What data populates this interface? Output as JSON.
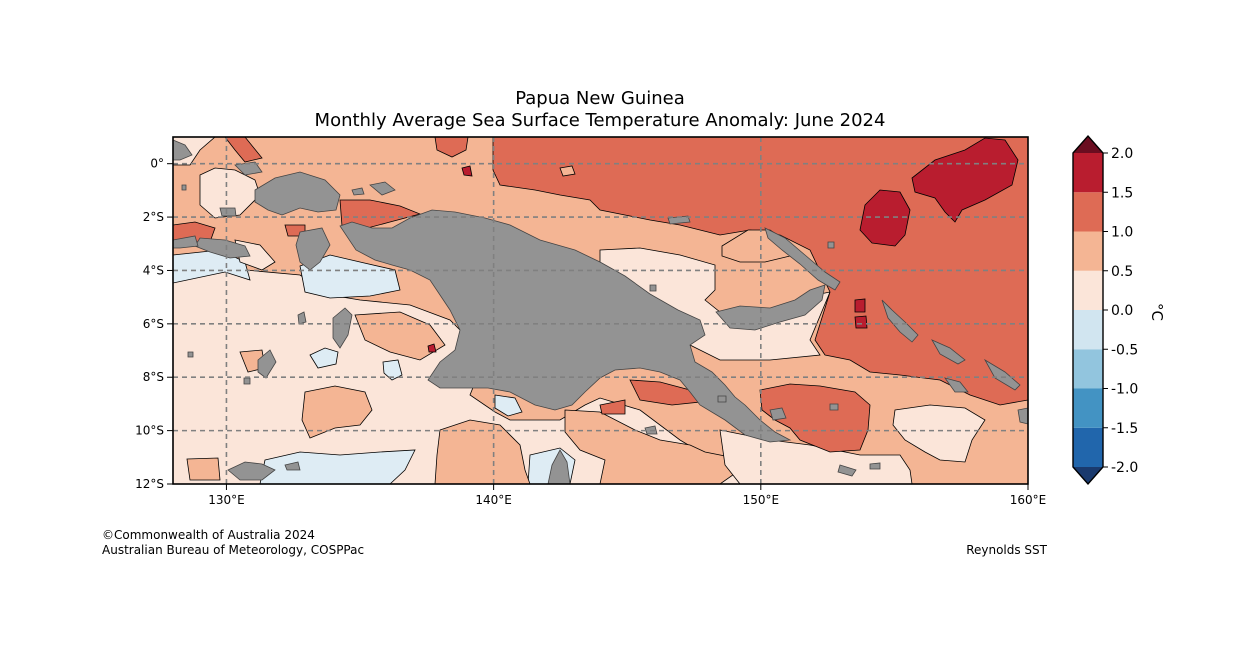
{
  "title": {
    "line1": "Papua New Guinea",
    "line2": "Monthly Average Sea Surface Temperature Anomaly: June 2024"
  },
  "map": {
    "lon_range": [
      128,
      160
    ],
    "lat_range": [
      -12,
      1
    ],
    "lat_ticks": [
      {
        "value": 0,
        "label": "0°"
      },
      {
        "value": -2,
        "label": "2°S"
      },
      {
        "value": -4,
        "label": "4°S"
      },
      {
        "value": -6,
        "label": "6°S"
      },
      {
        "value": -8,
        "label": "8°S"
      },
      {
        "value": -10,
        "label": "10°S"
      },
      {
        "value": -12,
        "label": "12°S"
      }
    ],
    "lon_ticks": [
      {
        "value": 130,
        "label": "130°E"
      },
      {
        "value": 140,
        "label": "140°E"
      },
      {
        "value": 150,
        "label": "150°E"
      },
      {
        "value": 160,
        "label": "160°E"
      }
    ],
    "land_color": "#939393"
  },
  "colorbar": {
    "unit": "°C",
    "levels": [
      -2.0,
      -1.5,
      -1.0,
      -0.5,
      0.0,
      0.5,
      1.0,
      1.5,
      2.0
    ],
    "labels": [
      "-2.0",
      "-1.5",
      "-1.0",
      "-0.5",
      "0.0",
      "0.5",
      "1.0",
      "1.5",
      "2.0"
    ],
    "colors": [
      "#2166ac",
      "#4393c3",
      "#92c5de",
      "#d1e5f0",
      "#fbe5d9",
      "#f4b594",
      "#de6b55",
      "#b91d2f"
    ],
    "under_color": "#1a3a6e",
    "over_color": "#6a0d20"
  },
  "credits": {
    "line1": "©Commonwealth of Australia 2024",
    "line2": "Australian Bureau of Meteorology, COSPPac",
    "source": "Reynolds SST"
  }
}
